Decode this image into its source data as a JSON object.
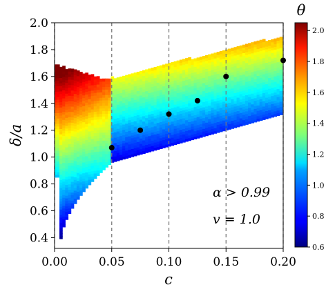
{
  "chart_data": {
    "type": "heatmap",
    "xlabel": "c",
    "ylabel": "δ/a",
    "xlim": [
      0.0,
      0.2
    ],
    "ylim": [
      0.32,
      2.0
    ],
    "xticks": [
      "0.00",
      "0.05",
      "0.10",
      "0.15",
      "0.20"
    ],
    "xtick_values": [
      0.0,
      0.05,
      0.1,
      0.15,
      0.2
    ],
    "yticks": [
      "0.4",
      "0.6",
      "0.8",
      "1.0",
      "1.2",
      "1.4",
      "1.6",
      "1.8",
      "2.0"
    ],
    "ytick_values": [
      0.4,
      0.6,
      0.8,
      1.0,
      1.2,
      1.4,
      1.6,
      1.8,
      2.0
    ],
    "vertical_dashed_lines": [
      0.0,
      0.05,
      0.1,
      0.15,
      0.2
    ],
    "colorbar": {
      "label": "θ",
      "range": [
        0.6,
        2.05
      ],
      "ticks": [
        "0.6",
        "0.8",
        "1.0",
        "1.2",
        "1.4",
        "1.6",
        "1.8",
        "2.0"
      ],
      "tick_values": [
        0.6,
        0.8,
        1.0,
        1.2,
        1.4,
        1.6,
        1.8,
        2.0
      ],
      "colormap": "jet"
    },
    "points": {
      "x": [
        0.05,
        0.075,
        0.1,
        0.125,
        0.15,
        0.2
      ],
      "y": [
        1.07,
        1.2,
        1.32,
        1.42,
        1.6,
        1.72
      ],
      "color": "#000000"
    },
    "annotations": [
      "α > 0.99",
      "v = 1.0"
    ]
  }
}
